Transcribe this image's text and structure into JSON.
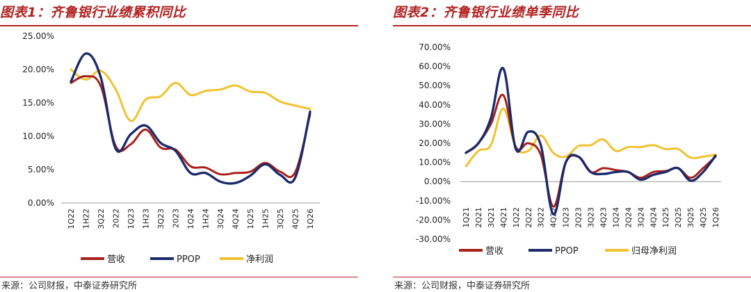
{
  "colors": {
    "revenue": "#a8201a",
    "ppop": "#1b2a6b",
    "net": "#f2c12e",
    "accent": "#b22222"
  },
  "left": {
    "title": "图表1：齐鲁银行业绩累积同比",
    "source": "来源：公司财报，中泰证券研究所"
  },
  "right": {
    "title": "图表2：齐鲁银行业绩单季同比",
    "source": "来源：公司财报，中泰证券研究所"
  },
  "chart_data": [
    {
      "type": "line",
      "title": "图表1：齐鲁银行业绩累积同比",
      "categories": [
        "1Q22",
        "1H22",
        "3Q22",
        "2022",
        "1Q23",
        "1H23",
        "3Q23",
        "2023",
        "1Q24",
        "1H24",
        "3Q24",
        "4Q24",
        "1Q25",
        "1H25",
        "3Q25",
        "4Q25",
        "1Q26"
      ],
      "y_ticks": [
        "0.00%",
        "5.00%",
        "10.00%",
        "15.00%",
        "20.00%",
        "25.00%"
      ],
      "ylim": [
        0,
        25
      ],
      "grid": false,
      "legend_position": "bottom",
      "series": [
        {
          "name": "营收",
          "color_key": "revenue",
          "values": [
            18.0,
            19.0,
            17.5,
            8.5,
            8.8,
            11.0,
            8.3,
            8.0,
            5.5,
            5.3,
            4.3,
            4.5,
            4.7,
            6.0,
            4.7,
            4.6,
            13.3
          ]
        },
        {
          "name": "PPOP",
          "color_key": "ppop",
          "values": [
            18.2,
            22.4,
            18.8,
            8.1,
            10.3,
            11.6,
            9.0,
            7.8,
            4.5,
            4.5,
            3.2,
            3.0,
            4.1,
            5.8,
            4.2,
            3.8,
            13.7
          ]
        },
        {
          "name": "净利润",
          "color_key": "net",
          "values": [
            20.0,
            18.5,
            19.8,
            17.0,
            12.3,
            15.5,
            16.0,
            18.0,
            16.2,
            16.8,
            17.0,
            17.6,
            16.7,
            16.5,
            15.2,
            14.6,
            14.1
          ]
        }
      ]
    },
    {
      "type": "line",
      "title": "图表2：齐鲁银行业绩单季同比",
      "categories": [
        "1Q21",
        "2Q21",
        "3Q21",
        "4Q21",
        "1Q22",
        "2Q22",
        "3Q22",
        "4Q22",
        "1Q23",
        "2Q23",
        "3Q23",
        "4Q23",
        "1Q24",
        "2Q24",
        "3Q24",
        "4Q24",
        "1Q25",
        "2Q25",
        "3Q25",
        "4Q25",
        "1Q26"
      ],
      "y_ticks": [
        "-30.00%",
        "-20.00%",
        "-10.00%",
        "0.00%",
        "10.00%",
        "20.00%",
        "30.00%",
        "40.00%",
        "50.00%",
        "60.00%",
        "70.00%"
      ],
      "ylim": [
        -30,
        70
      ],
      "grid": false,
      "legend_position": "bottom",
      "series": [
        {
          "name": "营收",
          "color_key": "revenue",
          "values": [
            15.0,
            20.0,
            30.0,
            45.0,
            18.0,
            20.0,
            14.0,
            -13.0,
            10.0,
            13.0,
            5.0,
            7.0,
            6.0,
            5.0,
            2.0,
            5.0,
            5.5,
            7.0,
            2.0,
            7.0,
            13.0
          ]
        },
        {
          "name": "PPOP",
          "color_key": "ppop",
          "values": [
            15.0,
            20.0,
            33.0,
            59.0,
            17.0,
            26.0,
            19.0,
            -17.0,
            10.0,
            13.0,
            5.0,
            4.0,
            5.0,
            5.0,
            1.0,
            3.5,
            5.0,
            7.0,
            0.5,
            5.0,
            13.5
          ]
        },
        {
          "name": "归母净利润",
          "color_key": "net",
          "values": [
            8.0,
            16.0,
            19.0,
            38.0,
            18.0,
            16.0,
            24.0,
            15.0,
            13.0,
            18.5,
            19.0,
            22.0,
            16.0,
            18.0,
            18.0,
            19.0,
            17.0,
            17.0,
            12.5,
            13.0,
            14.0
          ]
        }
      ]
    }
  ]
}
